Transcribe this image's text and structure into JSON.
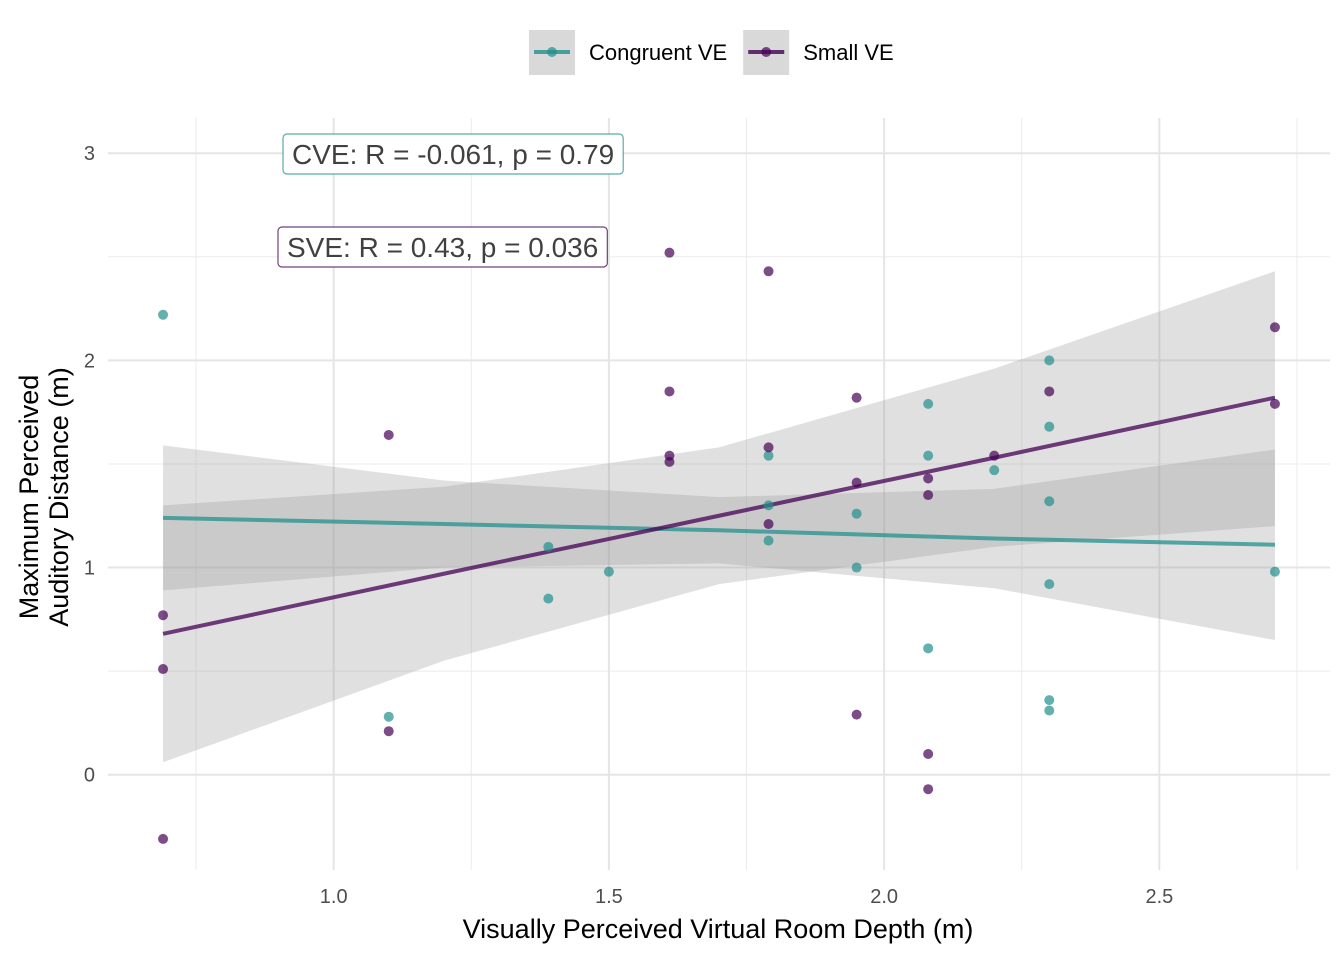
{
  "chart_data": {
    "type": "scatter",
    "xlabel": "Visually Perceived Virtual Room Depth (m)",
    "ylabel": [
      "Maximum Perceived",
      "Auditory Distance (m)"
    ],
    "xlim": [
      0.59,
      2.81
    ],
    "ylim": [
      -0.46,
      3.17
    ],
    "xticks": [
      {
        "value": 1,
        "label": "1.0"
      },
      {
        "value": 1.5,
        "label": "1.5"
      },
      {
        "value": 2,
        "label": "2.0"
      },
      {
        "value": 2.5,
        "label": "2.5"
      }
    ],
    "xminorticks": [
      0.75,
      1.25,
      1.75,
      2.25,
      2.75
    ],
    "yticks": [
      0,
      1,
      2,
      3
    ],
    "yminorticks": [
      0.5,
      1.5,
      2.5
    ],
    "grid": true,
    "legend": "top",
    "annotations": [
      "CVE: R = -0.061, p =  0.79",
      "SVE: R = 0.43, p =  0.036"
    ],
    "series": [
      {
        "name": "Congruent VE",
        "color": "#21908c",
        "x": [
          0.69,
          1.1,
          1.39,
          1.39,
          1.5,
          1.79,
          1.79,
          1.79,
          1.95,
          1.95,
          2.08,
          2.08,
          2.08,
          2.2,
          2.3,
          2.3,
          2.3,
          2.3,
          2.3,
          2.3,
          2.71
        ],
        "y": [
          2.22,
          0.28,
          1.1,
          0.85,
          0.98,
          1.54,
          1.3,
          1.13,
          1.26,
          1.0,
          1.79,
          1.54,
          0.61,
          1.47,
          2.0,
          1.68,
          1.32,
          0.92,
          0.36,
          0.31,
          0.98
        ],
        "fit": {
          "x": [
            0.69,
            1.2,
            1.7,
            2.2,
            2.71
          ],
          "y": [
            1.24,
            1.21,
            1.18,
            1.14,
            1.11
          ],
          "lower": [
            0.89,
            1.0,
            1.02,
            0.9,
            0.65
          ],
          "upper": [
            1.59,
            1.42,
            1.34,
            1.38,
            1.57
          ]
        }
      },
      {
        "name": "Small VE",
        "color": "#440154",
        "x": [
          0.69,
          0.69,
          0.69,
          1.1,
          1.1,
          1.61,
          1.61,
          1.61,
          1.61,
          1.79,
          1.79,
          1.79,
          1.95,
          1.95,
          1.95,
          2.08,
          2.08,
          2.08,
          2.08,
          2.2,
          2.3,
          2.71,
          2.71
        ],
        "y": [
          0.77,
          0.51,
          -0.31,
          1.64,
          0.21,
          2.52,
          1.85,
          1.54,
          1.51,
          2.43,
          1.58,
          1.21,
          1.82,
          1.41,
          0.29,
          1.43,
          1.35,
          0.1,
          -0.07,
          1.54,
          1.85,
          2.16,
          1.79
        ],
        "fit": {
          "x": [
            0.69,
            1.2,
            1.7,
            2.2,
            2.71
          ],
          "y": [
            0.68,
            0.97,
            1.25,
            1.53,
            1.82
          ],
          "lower": [
            0.06,
            0.55,
            0.92,
            1.1,
            1.2
          ],
          "upper": [
            1.3,
            1.39,
            1.58,
            1.96,
            2.43
          ]
        }
      }
    ]
  }
}
